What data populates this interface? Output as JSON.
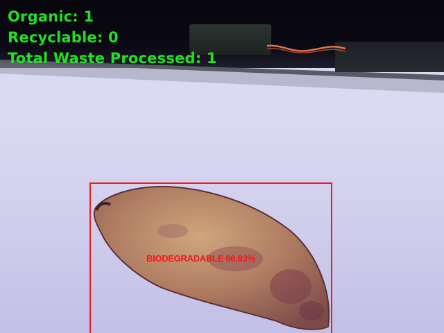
{
  "hud": {
    "organic_label": "Organic:",
    "organic_count": "1",
    "recyclable_label": "Recyclable:",
    "recyclable_count": "0",
    "total_label": "Total Waste Processed:",
    "total_count": "1"
  },
  "detection": {
    "label": "BIODEGRADABLE 66.93%",
    "box_color": "#ee1c1c"
  },
  "colors": {
    "hud_text": "#22e022",
    "background": "#d9d8f1"
  }
}
